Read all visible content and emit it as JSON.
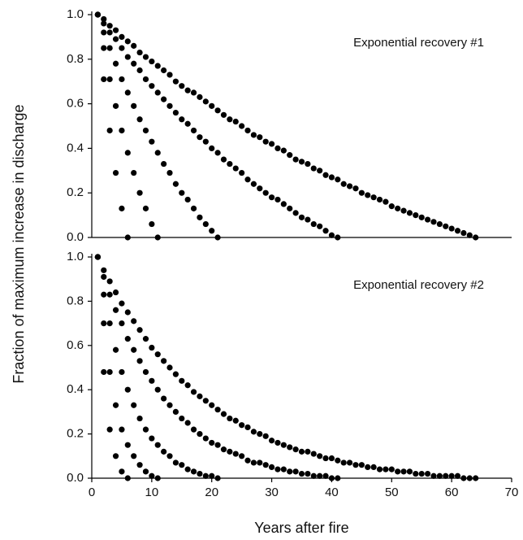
{
  "ylabel": "Fraction of maximum increase in discharge",
  "chart_data": [
    {
      "type": "scatter",
      "annotation": "Exponential recovery #1",
      "color": "#000000",
      "xlim": [
        0,
        70
      ],
      "ylim": [
        0,
        1
      ],
      "yticks": [
        {
          "value": 0,
          "label": "0.0"
        },
        0.2,
        0.4,
        0.6,
        0.8,
        {
          "value": 1,
          "label": "1.0"
        }
      ],
      "series": [
        {
          "x": [
            1,
            2,
            3,
            4,
            5,
            6
          ],
          "values": [
            1.0,
            0.71,
            0.48,
            0.29,
            0.13,
            0
          ]
        },
        {
          "x": [
            1,
            2,
            3,
            4,
            5,
            6,
            7,
            8,
            9,
            10,
            11
          ],
          "values": [
            1.0,
            0.85,
            0.71,
            0.59,
            0.48,
            0.38,
            0.29,
            0.2,
            0.13,
            0.06,
            0
          ]
        },
        {
          "x": [
            1,
            2,
            3,
            4,
            5,
            6,
            7,
            8,
            9,
            10,
            11,
            12,
            13,
            14,
            15,
            16,
            17,
            18,
            19,
            20,
            21
          ],
          "values": [
            1.0,
            0.92,
            0.85,
            0.78,
            0.71,
            0.65,
            0.59,
            0.53,
            0.48,
            0.43,
            0.38,
            0.33,
            0.29,
            0.24,
            0.2,
            0.17,
            0.13,
            0.09,
            0.06,
            0.03,
            0
          ]
        },
        {
          "x": [
            1,
            2,
            3,
            4,
            5,
            6,
            7,
            8,
            9,
            10,
            11,
            12,
            13,
            14,
            15,
            16,
            17,
            18,
            19,
            20,
            21,
            22,
            23,
            24,
            25,
            26,
            27,
            28,
            29,
            30,
            31,
            32,
            33,
            34,
            35,
            36,
            37,
            38,
            39,
            40,
            41
          ],
          "values": [
            1.0,
            0.96,
            0.92,
            0.89,
            0.85,
            0.81,
            0.78,
            0.75,
            0.71,
            0.68,
            0.65,
            0.62,
            0.59,
            0.56,
            0.53,
            0.51,
            0.48,
            0.45,
            0.43,
            0.4,
            0.38,
            0.35,
            0.33,
            0.31,
            0.29,
            0.26,
            0.24,
            0.22,
            0.2,
            0.18,
            0.17,
            0.15,
            0.13,
            0.11,
            0.09,
            0.08,
            0.06,
            0.05,
            0.03,
            0.01,
            0
          ]
        },
        {
          "x": [
            1,
            2,
            3,
            4,
            5,
            6,
            7,
            8,
            9,
            10,
            11,
            12,
            13,
            14,
            15,
            16,
            17,
            18,
            19,
            20,
            21,
            22,
            23,
            24,
            25,
            26,
            27,
            28,
            29,
            30,
            31,
            32,
            33,
            34,
            35,
            36,
            37,
            38,
            39,
            40,
            41,
            42,
            43,
            44,
            45,
            46,
            47,
            48,
            49,
            50,
            51,
            52,
            53,
            54,
            55,
            56,
            57,
            58,
            59,
            60,
            61,
            62,
            63,
            64
          ],
          "values": [
            1.0,
            0.98,
            0.95,
            0.93,
            0.9,
            0.88,
            0.86,
            0.83,
            0.81,
            0.79,
            0.77,
            0.75,
            0.73,
            0.7,
            0.68,
            0.66,
            0.65,
            0.63,
            0.61,
            0.59,
            0.57,
            0.55,
            0.53,
            0.52,
            0.5,
            0.48,
            0.46,
            0.45,
            0.43,
            0.42,
            0.4,
            0.39,
            0.37,
            0.35,
            0.34,
            0.33,
            0.31,
            0.3,
            0.28,
            0.27,
            0.26,
            0.24,
            0.23,
            0.22,
            0.2,
            0.19,
            0.18,
            0.17,
            0.16,
            0.14,
            0.13,
            0.12,
            0.11,
            0.1,
            0.09,
            0.08,
            0.07,
            0.06,
            0.05,
            0.04,
            0.03,
            0.02,
            0.01,
            0
          ]
        }
      ]
    },
    {
      "type": "scatter",
      "annotation": "Exponential recovery #2",
      "color": "#000000",
      "xlabel": "Years after fire",
      "xlim": [
        0,
        70
      ],
      "ylim": [
        0,
        1
      ],
      "xticks": [
        0,
        10,
        20,
        30,
        40,
        50,
        60,
        70
      ],
      "yticks": [
        {
          "value": 0,
          "label": "0.0"
        },
        0.2,
        0.4,
        0.6,
        0.8,
        {
          "value": 1,
          "label": "1.0"
        }
      ],
      "series": [
        {
          "x": [
            1,
            2,
            3,
            4,
            5,
            6
          ],
          "values": [
            1.0,
            0.48,
            0.22,
            0.1,
            0.03,
            0
          ]
        },
        {
          "x": [
            1,
            2,
            3,
            4,
            5,
            6,
            7,
            8,
            9,
            10,
            11
          ],
          "values": [
            1.0,
            0.7,
            0.48,
            0.33,
            0.22,
            0.15,
            0.1,
            0.06,
            0.03,
            0.01,
            0
          ]
        },
        {
          "x": [
            1,
            2,
            3,
            4,
            5,
            6,
            7,
            8,
            9,
            10,
            11,
            12,
            13,
            14,
            15,
            16,
            17,
            18,
            19,
            20,
            21
          ],
          "values": [
            1.0,
            0.83,
            0.7,
            0.58,
            0.48,
            0.4,
            0.33,
            0.27,
            0.22,
            0.18,
            0.15,
            0.12,
            0.1,
            0.07,
            0.06,
            0.04,
            0.03,
            0.02,
            0.01,
            0.01,
            0
          ]
        },
        {
          "x": [
            1,
            2,
            3,
            4,
            5,
            6,
            7,
            8,
            9,
            10,
            11,
            12,
            13,
            14,
            15,
            16,
            17,
            18,
            19,
            20,
            21,
            22,
            23,
            24,
            25,
            26,
            27,
            28,
            29,
            30,
            31,
            32,
            33,
            34,
            35,
            36,
            37,
            38,
            39,
            40,
            41
          ],
          "values": [
            1.0,
            0.91,
            0.83,
            0.76,
            0.7,
            0.63,
            0.58,
            0.53,
            0.48,
            0.44,
            0.4,
            0.36,
            0.33,
            0.3,
            0.27,
            0.25,
            0.22,
            0.2,
            0.18,
            0.16,
            0.15,
            0.13,
            0.12,
            0.11,
            0.1,
            0.08,
            0.07,
            0.07,
            0.06,
            0.05,
            0.04,
            0.04,
            0.03,
            0.03,
            0.02,
            0.02,
            0.01,
            0.01,
            0.01,
            0.0,
            0
          ]
        },
        {
          "x": [
            1,
            2,
            3,
            4,
            5,
            6,
            7,
            8,
            9,
            10,
            11,
            12,
            13,
            14,
            15,
            16,
            17,
            18,
            19,
            20,
            21,
            22,
            23,
            24,
            25,
            26,
            27,
            28,
            29,
            30,
            31,
            32,
            33,
            34,
            35,
            36,
            37,
            38,
            39,
            40,
            41,
            42,
            43,
            44,
            45,
            46,
            47,
            48,
            49,
            50,
            51,
            52,
            53,
            54,
            55,
            56,
            57,
            58,
            59,
            60,
            61,
            62,
            63,
            64
          ],
          "values": [
            1.0,
            0.94,
            0.89,
            0.84,
            0.79,
            0.75,
            0.71,
            0.67,
            0.63,
            0.59,
            0.56,
            0.53,
            0.5,
            0.47,
            0.44,
            0.42,
            0.39,
            0.37,
            0.35,
            0.33,
            0.31,
            0.29,
            0.27,
            0.26,
            0.24,
            0.23,
            0.21,
            0.2,
            0.19,
            0.17,
            0.16,
            0.15,
            0.14,
            0.13,
            0.12,
            0.12,
            0.11,
            0.1,
            0.09,
            0.09,
            0.08,
            0.07,
            0.07,
            0.06,
            0.06,
            0.05,
            0.05,
            0.04,
            0.04,
            0.04,
            0.03,
            0.03,
            0.03,
            0.02,
            0.02,
            0.02,
            0.01,
            0.01,
            0.01,
            0.01,
            0.01,
            0.0,
            0.0,
            0
          ]
        }
      ]
    }
  ]
}
